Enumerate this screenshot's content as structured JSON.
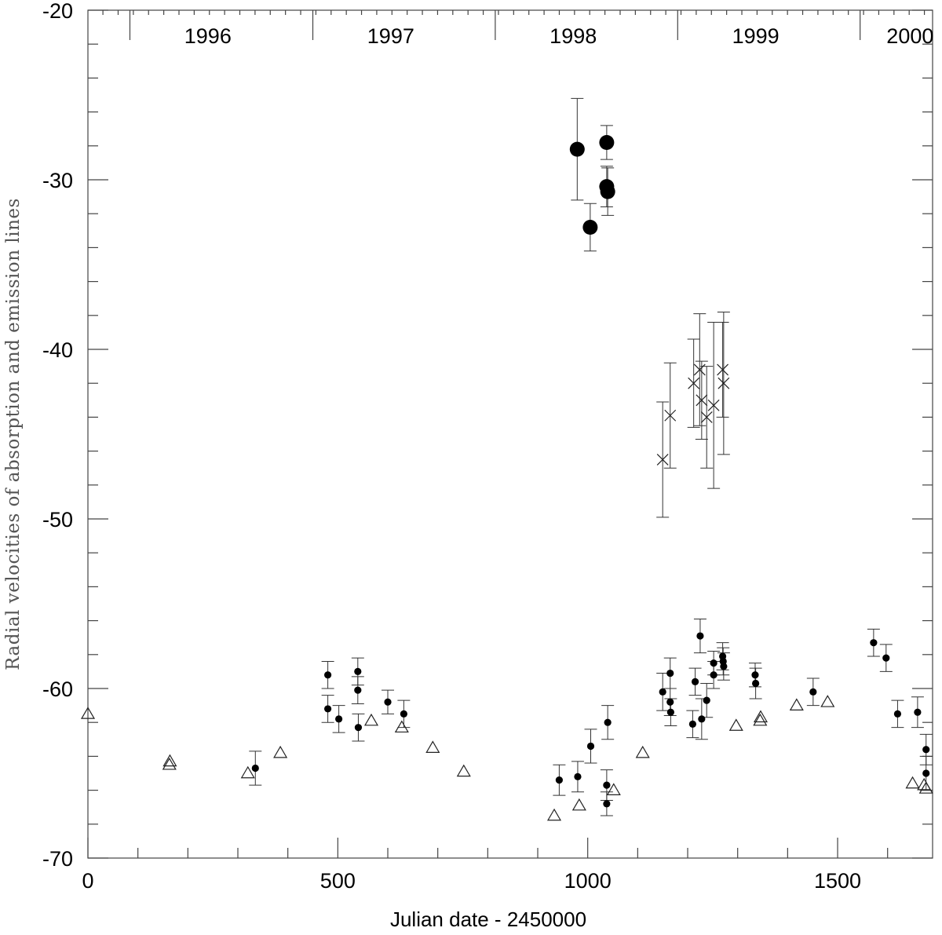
{
  "chart_data": {
    "type": "scatter",
    "xlabel": "Julian date - 2450000",
    "ylabel": "Radial velocities of absorption and emission lines",
    "xlim": [
      0,
      1690
    ],
    "ylim": [
      -70,
      -20
    ],
    "x_ticks": [
      0,
      500,
      1000,
      1500
    ],
    "x_minor_step": 100,
    "y_ticks": [
      -70,
      -60,
      -50,
      -40,
      -30,
      -20
    ],
    "y_minor_step": 2,
    "top_axis": {
      "year_labels": [
        {
          "label": "1996",
          "x": 240
        },
        {
          "label": "1997",
          "x": 606
        },
        {
          "label": "1998",
          "x": 971
        },
        {
          "label": "1999",
          "x": 1336
        },
        {
          "label": "2000",
          "x": 1645
        }
      ],
      "year_boundaries": [
        84,
        450,
        815,
        1180,
        1545
      ]
    },
    "grid": false,
    "series": [
      {
        "marker": "small-dot",
        "points": [
          {
            "x": 335,
            "y": -64.7,
            "err": 1.0
          },
          {
            "x": 480,
            "y": -59.2,
            "err": 0.8
          },
          {
            "x": 480,
            "y": -61.2,
            "err": 0.8
          },
          {
            "x": 502,
            "y": -61.8,
            "err": 0.8
          },
          {
            "x": 540,
            "y": -59.0,
            "err": 0.8
          },
          {
            "x": 540,
            "y": -60.1,
            "err": 0.8
          },
          {
            "x": 541,
            "y": -62.3,
            "err": 0.8
          },
          {
            "x": 600,
            "y": -60.8,
            "err": 0.7
          },
          {
            "x": 632,
            "y": -61.5,
            "err": 0.8
          },
          {
            "x": 943,
            "y": -65.4,
            "err": 0.9
          },
          {
            "x": 980,
            "y": -65.2,
            "err": 0.9
          },
          {
            "x": 1006,
            "y": -63.4,
            "err": 1.0
          },
          {
            "x": 1040,
            "y": -62.0,
            "err": 1.0
          },
          {
            "x": 1038,
            "y": -65.7,
            "err": 0.9
          },
          {
            "x": 1038,
            "y": -66.8,
            "err": 0.7
          },
          {
            "x": 1150,
            "y": -60.2,
            "err": 1.1
          },
          {
            "x": 1165,
            "y": -59.1,
            "err": 0.9
          },
          {
            "x": 1165,
            "y": -60.8,
            "err": 0.8
          },
          {
            "x": 1166,
            "y": -61.4,
            "err": 0.8
          },
          {
            "x": 1210,
            "y": -62.1,
            "err": 0.8
          },
          {
            "x": 1215,
            "y": -59.6,
            "err": 0.8
          },
          {
            "x": 1225,
            "y": -56.9,
            "err": 1.0
          },
          {
            "x": 1228,
            "y": -61.8,
            "err": 1.2
          },
          {
            "x": 1238,
            "y": -60.7,
            "err": 1.0
          },
          {
            "x": 1252,
            "y": -59.2,
            "err": 0.8
          },
          {
            "x": 1252,
            "y": -58.5,
            "err": 0.7
          },
          {
            "x": 1270,
            "y": -58.1,
            "err": 0.8
          },
          {
            "x": 1271,
            "y": -58.4,
            "err": 0.8
          },
          {
            "x": 1272,
            "y": -58.7,
            "err": 0.8
          },
          {
            "x": 1335,
            "y": -59.2,
            "err": 0.7
          },
          {
            "x": 1336,
            "y": -59.7,
            "err": 0.9
          },
          {
            "x": 1451,
            "y": -60.2,
            "err": 0.8
          },
          {
            "x": 1572,
            "y": -57.3,
            "err": 0.8
          },
          {
            "x": 1597,
            "y": -58.2,
            "err": 0.8
          },
          {
            "x": 1620,
            "y": -61.5,
            "err": 0.8
          },
          {
            "x": 1660,
            "y": -61.4,
            "err": 0.9
          },
          {
            "x": 1677,
            "y": -63.6,
            "err": 0.9
          },
          {
            "x": 1677,
            "y": -65.0,
            "err": 1.0
          }
        ]
      },
      {
        "marker": "large-dot",
        "points": [
          {
            "x": 979,
            "y": -28.2,
            "err": 3.0
          },
          {
            "x": 1005,
            "y": -32.8,
            "err": 1.4
          },
          {
            "x": 1038,
            "y": -27.8,
            "err": 1.0
          },
          {
            "x": 1038,
            "y": -30.4,
            "err": 1.2
          },
          {
            "x": 1040,
            "y": -30.7,
            "err": 1.4
          }
        ]
      },
      {
        "marker": "cross",
        "points": [
          {
            "x": 1150,
            "y": -46.5,
            "err": 3.4
          },
          {
            "x": 1165,
            "y": -43.9,
            "err": 3.1
          },
          {
            "x": 1212,
            "y": -42.0,
            "err": 2.6
          },
          {
            "x": 1224,
            "y": -41.2,
            "err": 3.3
          },
          {
            "x": 1228,
            "y": -43.0,
            "err": 2.3
          },
          {
            "x": 1238,
            "y": -44.0,
            "err": 3.0
          },
          {
            "x": 1252,
            "y": -43.3,
            "err": 4.9
          },
          {
            "x": 1270,
            "y": -41.2,
            "err": 2.8
          },
          {
            "x": 1272,
            "y": -42.0,
            "err": 4.2
          }
        ]
      },
      {
        "marker": "open-triangle",
        "points": [
          {
            "x": 0,
            "y": -61.5
          },
          {
            "x": 163,
            "y": -64.5
          },
          {
            "x": 164,
            "y": -64.3
          },
          {
            "x": 320,
            "y": -65.0
          },
          {
            "x": 385,
            "y": -63.8
          },
          {
            "x": 567,
            "y": -61.9
          },
          {
            "x": 628,
            "y": -62.3
          },
          {
            "x": 690,
            "y": -63.5
          },
          {
            "x": 752,
            "y": -64.9
          },
          {
            "x": 933,
            "y": -67.5
          },
          {
            "x": 983,
            "y": -66.9
          },
          {
            "x": 1052,
            "y": -66.0
          },
          {
            "x": 1110,
            "y": -63.8
          },
          {
            "x": 1297,
            "y": -62.2
          },
          {
            "x": 1345,
            "y": -61.9
          },
          {
            "x": 1346,
            "y": -61.7
          },
          {
            "x": 1418,
            "y": -61.0
          },
          {
            "x": 1480,
            "y": -60.8
          },
          {
            "x": 1650,
            "y": -65.6
          },
          {
            "x": 1673,
            "y": -65.7
          },
          {
            "x": 1677,
            "y": -65.9
          }
        ]
      }
    ]
  }
}
